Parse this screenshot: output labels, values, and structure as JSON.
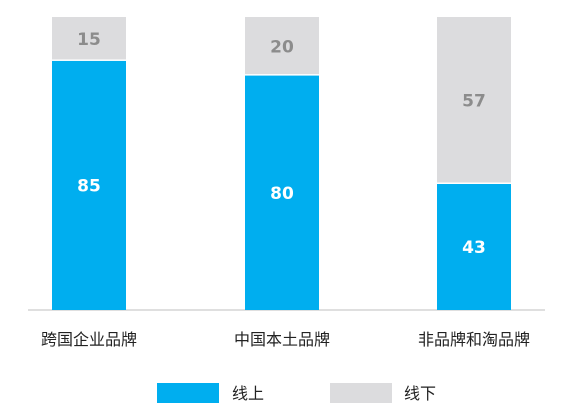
{
  "chart_data": {
    "type": "bar",
    "stacked": true,
    "percent_stacked": true,
    "categories": [
      "跨国企业品牌",
      "中国本土品牌",
      "非品牌和淘品牌"
    ],
    "series": [
      {
        "name": "线上",
        "values": [
          85,
          80,
          43
        ],
        "color": "#00AEEF",
        "label_color": "#ffffff"
      },
      {
        "name": "线下",
        "values": [
          15,
          20,
          57
        ],
        "color": "#DCDCDE",
        "label_color": "#8C8C8C"
      }
    ],
    "ylim": [
      0,
      100
    ],
    "grid": false,
    "legend_position": "bottom",
    "title": "",
    "xlabel": "",
    "ylabel": ""
  }
}
